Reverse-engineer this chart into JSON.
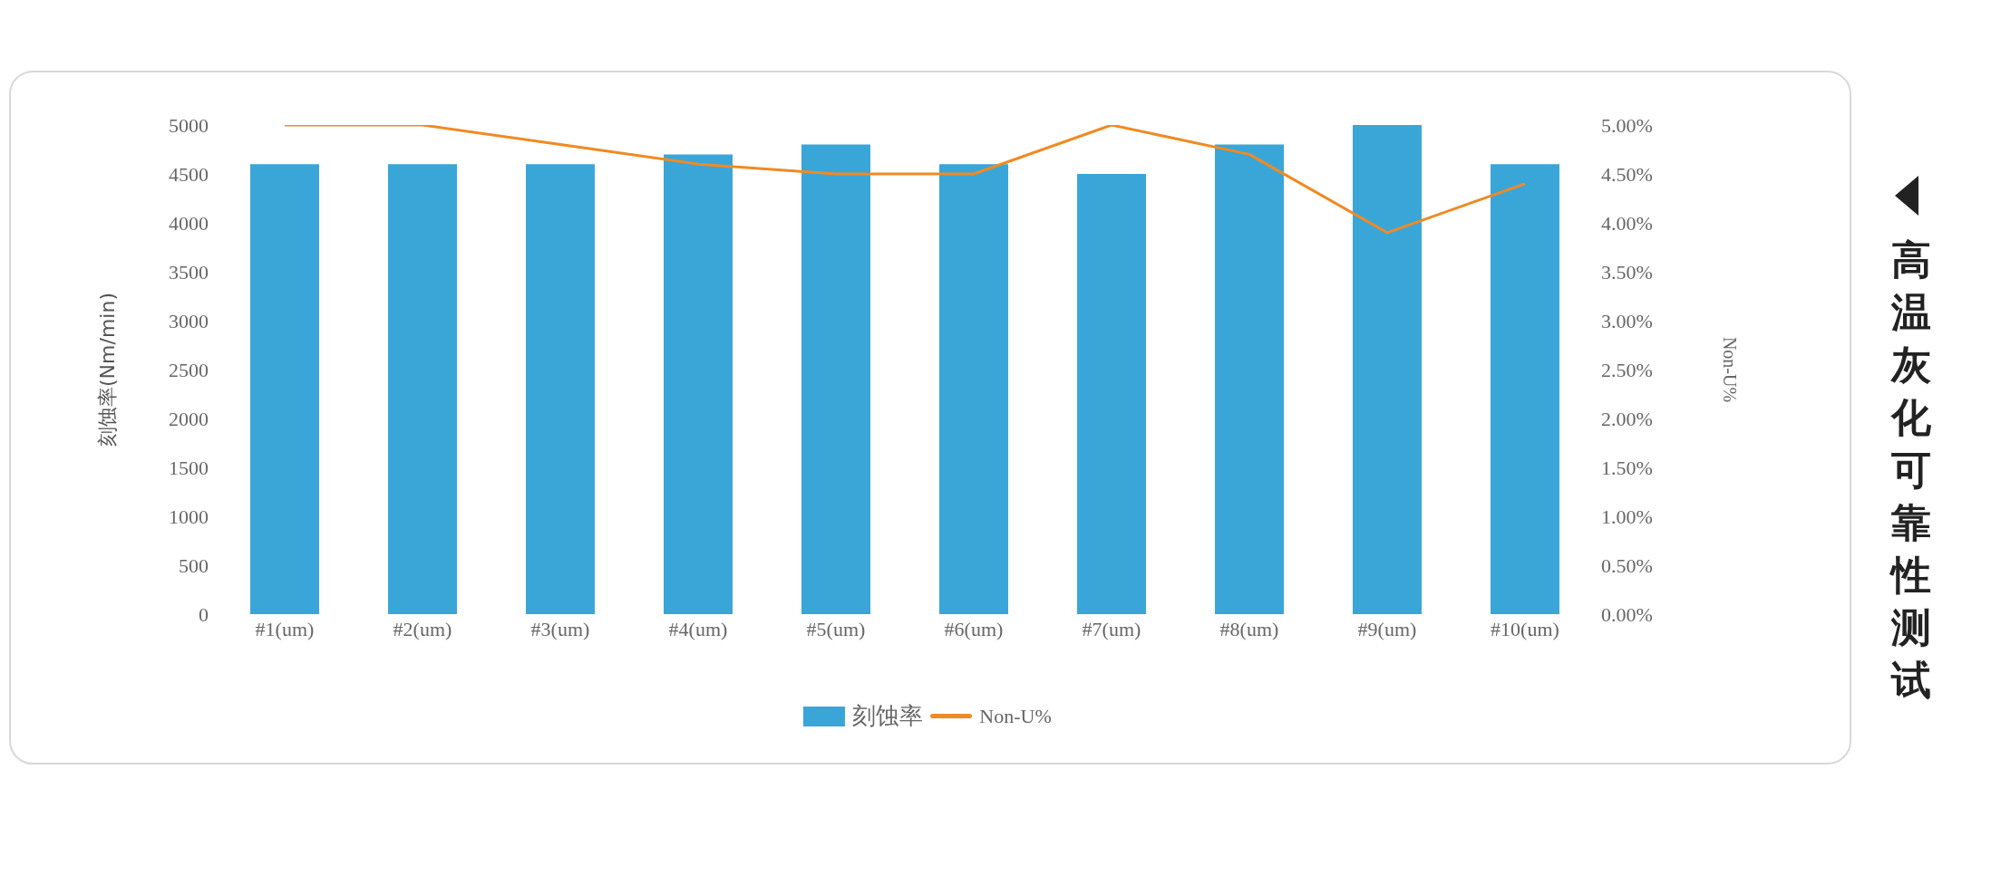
{
  "chart_data": {
    "type": "bar",
    "title": "高温灰化可靠性测试",
    "categories": [
      "#1(um)",
      "#2(um)",
      "#3(um)",
      "#4(um)",
      "#5(um)",
      "#6(um)",
      "#7(um)",
      "#8(um)",
      "#9(um)",
      "#10(um)"
    ],
    "ylabel": "刻蚀率(Nm/min)",
    "y2label": "Non-U%",
    "ylim": [
      0,
      5000
    ],
    "yticks": [
      0,
      500,
      1000,
      1500,
      2000,
      2500,
      3000,
      3500,
      4000,
      4500,
      5000
    ],
    "y2lim": [
      0,
      5
    ],
    "y2ticks": [
      {
        "value": 0,
        "label": "0.00%"
      },
      {
        "value": 0.5,
        "label": "0.50%"
      },
      {
        "value": 1,
        "label": "1.00%"
      },
      {
        "value": 1.5,
        "label": "1.50%"
      },
      {
        "value": 2,
        "label": "2.00%"
      },
      {
        "value": 2.5,
        "label": "2.50%"
      },
      {
        "value": 3,
        "label": "3.00%"
      },
      {
        "value": 3.5,
        "label": "3.50%"
      },
      {
        "value": 4,
        "label": "4.00%"
      },
      {
        "value": 4.5,
        "label": "4.50%"
      },
      {
        "value": 5,
        "label": "5.00%"
      }
    ],
    "legend": "bottom",
    "grid": false,
    "series": [
      {
        "name": "刻蚀率",
        "color": "#3aa6d8",
        "values": [
          4600,
          4600,
          4600,
          4700,
          4800,
          4600,
          4500,
          4800,
          5000,
          4600
        ]
      },
      {
        "name": "Non-U%",
        "type": "line",
        "axis": "y2",
        "color": "#f08a24",
        "marker": "none",
        "values": [
          5.0,
          5.0,
          4.8,
          4.6,
          4.5,
          4.5,
          5.0,
          4.7,
          3.9,
          4.4
        ]
      }
    ]
  }
}
